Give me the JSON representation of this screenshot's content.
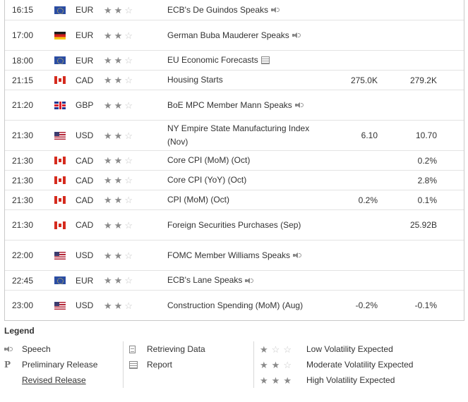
{
  "events": [
    {
      "time": "16:15",
      "flag": "eu",
      "currency": "EUR",
      "impact": 2,
      "event": "ECB's De Guindos Speaks",
      "icon": "speaker",
      "actual": "",
      "previous": "",
      "tall": false
    },
    {
      "time": "17:00",
      "flag": "de",
      "currency": "EUR",
      "impact": 2,
      "event": "German Buba Mauderer Speaks",
      "icon": "speaker",
      "actual": "",
      "previous": "",
      "tall": true
    },
    {
      "time": "18:00",
      "flag": "eu",
      "currency": "EUR",
      "impact": 2,
      "event": "EU Economic Forecasts",
      "icon": "report",
      "actual": "",
      "previous": "",
      "tall": false
    },
    {
      "time": "21:15",
      "flag": "ca",
      "currency": "CAD",
      "impact": 2,
      "event": "Housing Starts",
      "icon": "",
      "actual": "275.0K",
      "previous": "279.2K",
      "tall": false
    },
    {
      "time": "21:20",
      "flag": "gb",
      "currency": "GBP",
      "impact": 2,
      "event": "BoE MPC Member Mann Speaks",
      "icon": "speaker",
      "actual": "",
      "previous": "",
      "tall": true
    },
    {
      "time": "21:30",
      "flag": "us",
      "currency": "USD",
      "impact": 2,
      "event": "NY Empire State Manufacturing Index (Nov)",
      "icon": "",
      "actual": "6.10",
      "previous": "10.70",
      "tall": true
    },
    {
      "time": "21:30",
      "flag": "ca",
      "currency": "CAD",
      "impact": 2,
      "event": "Core CPI (MoM) (Oct)",
      "icon": "",
      "actual": "",
      "previous": "0.2%",
      "tall": false
    },
    {
      "time": "21:30",
      "flag": "ca",
      "currency": "CAD",
      "impact": 2,
      "event": "Core CPI (YoY) (Oct)",
      "icon": "",
      "actual": "",
      "previous": "2.8%",
      "tall": false
    },
    {
      "time": "21:30",
      "flag": "ca",
      "currency": "CAD",
      "impact": 2,
      "event": "CPI (MoM) (Oct)",
      "icon": "",
      "actual": "0.2%",
      "previous": "0.1%",
      "tall": false
    },
    {
      "time": "21:30",
      "flag": "ca",
      "currency": "CAD",
      "impact": 2,
      "event": "Foreign Securities Purchases (Sep)",
      "icon": "",
      "actual": "",
      "previous": "25.92B",
      "tall": true
    },
    {
      "time": "22:00",
      "flag": "us",
      "currency": "USD",
      "impact": 2,
      "event": "FOMC Member Williams Speaks",
      "icon": "speaker",
      "actual": "",
      "previous": "",
      "tall": true
    },
    {
      "time": "22:45",
      "flag": "eu",
      "currency": "EUR",
      "impact": 2,
      "event": "ECB's Lane Speaks",
      "icon": "speaker",
      "actual": "",
      "previous": "",
      "tall": false
    },
    {
      "time": "23:00",
      "flag": "us",
      "currency": "USD",
      "impact": 2,
      "event": "Construction Spending (MoM) (Aug)",
      "icon": "",
      "actual": "-0.2%",
      "previous": "-0.1%",
      "tall": true
    }
  ],
  "legend": {
    "title": "Legend",
    "speech": "Speech",
    "preliminary_mark": "P",
    "preliminary": "Preliminary Release",
    "revised": "Revised Release",
    "retrieving": "Retrieving Data",
    "report": "Report",
    "low": "Low Volatility Expected",
    "moderate": "Moderate Volatility Expected",
    "high": "High Volatility Expected"
  },
  "colors": {
    "star_on": "#8a8a8a",
    "star_off": "#c6c6c6",
    "border": "#c9c9c9"
  }
}
